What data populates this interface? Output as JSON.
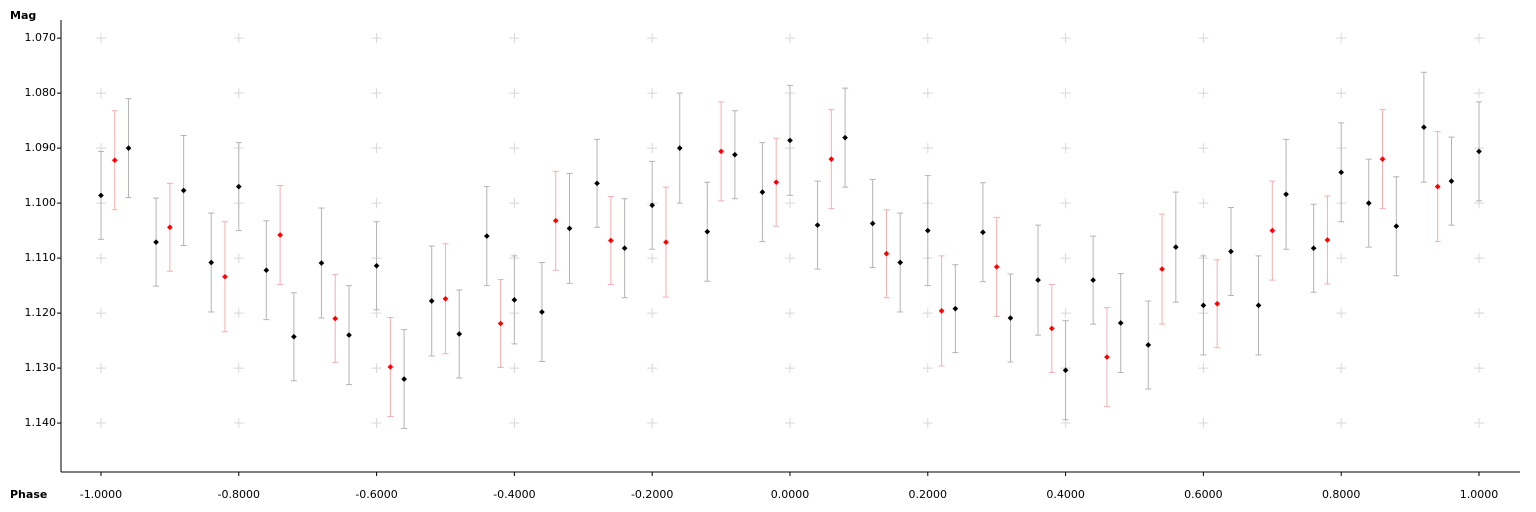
{
  "chart_data": {
    "type": "errorscatter",
    "ylabel": "Mag",
    "xlabel": "Phase",
    "xlim": [
      -1.058,
      1.0595
    ],
    "ylim": [
      1.0667,
      1.1489
    ],
    "invert_y": true,
    "grid": "crosses",
    "xticks": [
      {
        "value": -1.0,
        "label": "-1.0000"
      },
      {
        "value": -0.8,
        "label": "-0.8000"
      },
      {
        "value": -0.6,
        "label": "-0.6000"
      },
      {
        "value": -0.4,
        "label": "-0.4000"
      },
      {
        "value": -0.2,
        "label": "-0.2000"
      },
      {
        "value": 0,
        "label": "0.0000"
      },
      {
        "value": 0.2,
        "label": "0.2000"
      },
      {
        "value": 0.4,
        "label": "0.4000"
      },
      {
        "value": 0.6,
        "label": "0.6000"
      },
      {
        "value": 0.8,
        "label": "0.8000"
      },
      {
        "value": 1.0,
        "label": "1.0000"
      }
    ],
    "yticks": [
      {
        "value": 1.07,
        "label": "1.070"
      },
      {
        "value": 1.08,
        "label": "1.080"
      },
      {
        "value": 1.09,
        "label": "1.090"
      },
      {
        "value": 1.1,
        "label": "1.100"
      },
      {
        "value": 1.11,
        "label": "1.110"
      },
      {
        "value": 1.12,
        "label": "1.120"
      },
      {
        "value": 1.13,
        "label": "1.130"
      },
      {
        "value": 1.14,
        "label": "1.140"
      }
    ],
    "series": [
      {
        "color": "#000000",
        "error_color": "#b4b4b4",
        "x": [
          -1.0,
          -0.96,
          -0.92,
          -0.88,
          -0.84,
          -0.8,
          -0.76,
          -0.72,
          -0.68,
          -0.64,
          -0.6,
          -0.56,
          -0.52,
          -0.48,
          -0.44,
          -0.4,
          -0.36,
          -0.32,
          -0.28,
          -0.24,
          -0.2,
          -0.16,
          -0.12,
          -0.08,
          -0.04,
          0,
          0.04,
          0.08,
          0.12,
          0.16,
          0.2,
          0.24,
          0.28,
          0.32,
          0.36,
          0.4,
          0.44,
          0.48,
          0.52,
          0.56,
          0.6,
          0.64,
          0.68,
          0.72,
          0.76,
          0.8,
          0.84,
          0.88,
          0.92,
          0.96,
          1.0
        ],
        "values": [
          1.0986,
          1.09,
          1.1071,
          1.0977,
          1.1108,
          1.097,
          1.1122,
          1.1243,
          1.1109,
          1.124,
          1.1114,
          1.132,
          1.1178,
          1.1238,
          1.106,
          1.1176,
          1.1198,
          1.1046,
          1.0964,
          1.1082,
          1.1004,
          1.09,
          1.1052,
          1.0912,
          1.098,
          1.0886,
          1.104,
          1.0881,
          1.1037,
          1.1108,
          1.105,
          1.1192,
          1.1053,
          1.1209,
          1.114,
          1.1304,
          1.114,
          1.1218,
          1.1258,
          1.108,
          1.1186,
          1.1088,
          1.1186,
          1.0984,
          1.1082,
          1.0944,
          1.1,
          1.1042,
          1.0862,
          1.096,
          1.0906
        ],
        "errors": [
          0.008,
          0.009,
          0.008,
          0.01,
          0.009,
          0.008,
          0.009,
          0.008,
          0.01,
          0.009,
          0.008,
          0.009,
          0.01,
          0.008,
          0.009,
          0.008,
          0.009,
          0.01,
          0.008,
          0.009,
          0.008,
          0.01,
          0.009,
          0.008,
          0.009,
          0.01,
          0.008,
          0.009,
          0.008,
          0.009,
          0.01,
          0.008,
          0.009,
          0.008,
          0.01,
          0.009,
          0.008,
          0.009,
          0.008,
          0.01,
          0.009,
          0.008,
          0.009,
          0.01,
          0.008,
          0.009,
          0.008,
          0.009,
          0.01,
          0.008,
          0.009
        ]
      },
      {
        "color": "#ff0000",
        "error_color": "#f2b0b0",
        "x": [
          -0.98,
          -0.9,
          -0.82,
          -0.74,
          -0.66,
          -0.58,
          -0.5,
          -0.42,
          -0.34,
          -0.26,
          -0.18,
          -0.1,
          -0.02,
          0.06,
          0.14,
          0.22,
          0.3,
          0.38,
          0.46,
          0.54,
          0.62,
          0.7,
          0.78,
          0.86,
          0.94
        ],
        "values": [
          1.0922,
          1.1044,
          1.1134,
          1.1058,
          1.121,
          1.1298,
          1.1174,
          1.1219,
          1.1032,
          1.1068,
          1.1071,
          1.0906,
          1.0962,
          1.092,
          1.1092,
          1.1196,
          1.1116,
          1.1228,
          1.128,
          1.112,
          1.1183,
          1.105,
          1.1067,
          1.092,
          1.097
        ],
        "errors": [
          0.009,
          0.008,
          0.01,
          0.009,
          0.008,
          0.009,
          0.01,
          0.008,
          0.009,
          0.008,
          0.01,
          0.009,
          0.008,
          0.009,
          0.008,
          0.01,
          0.009,
          0.008,
          0.009,
          0.01,
          0.008,
          0.009,
          0.008,
          0.009,
          0.01
        ]
      }
    ]
  }
}
